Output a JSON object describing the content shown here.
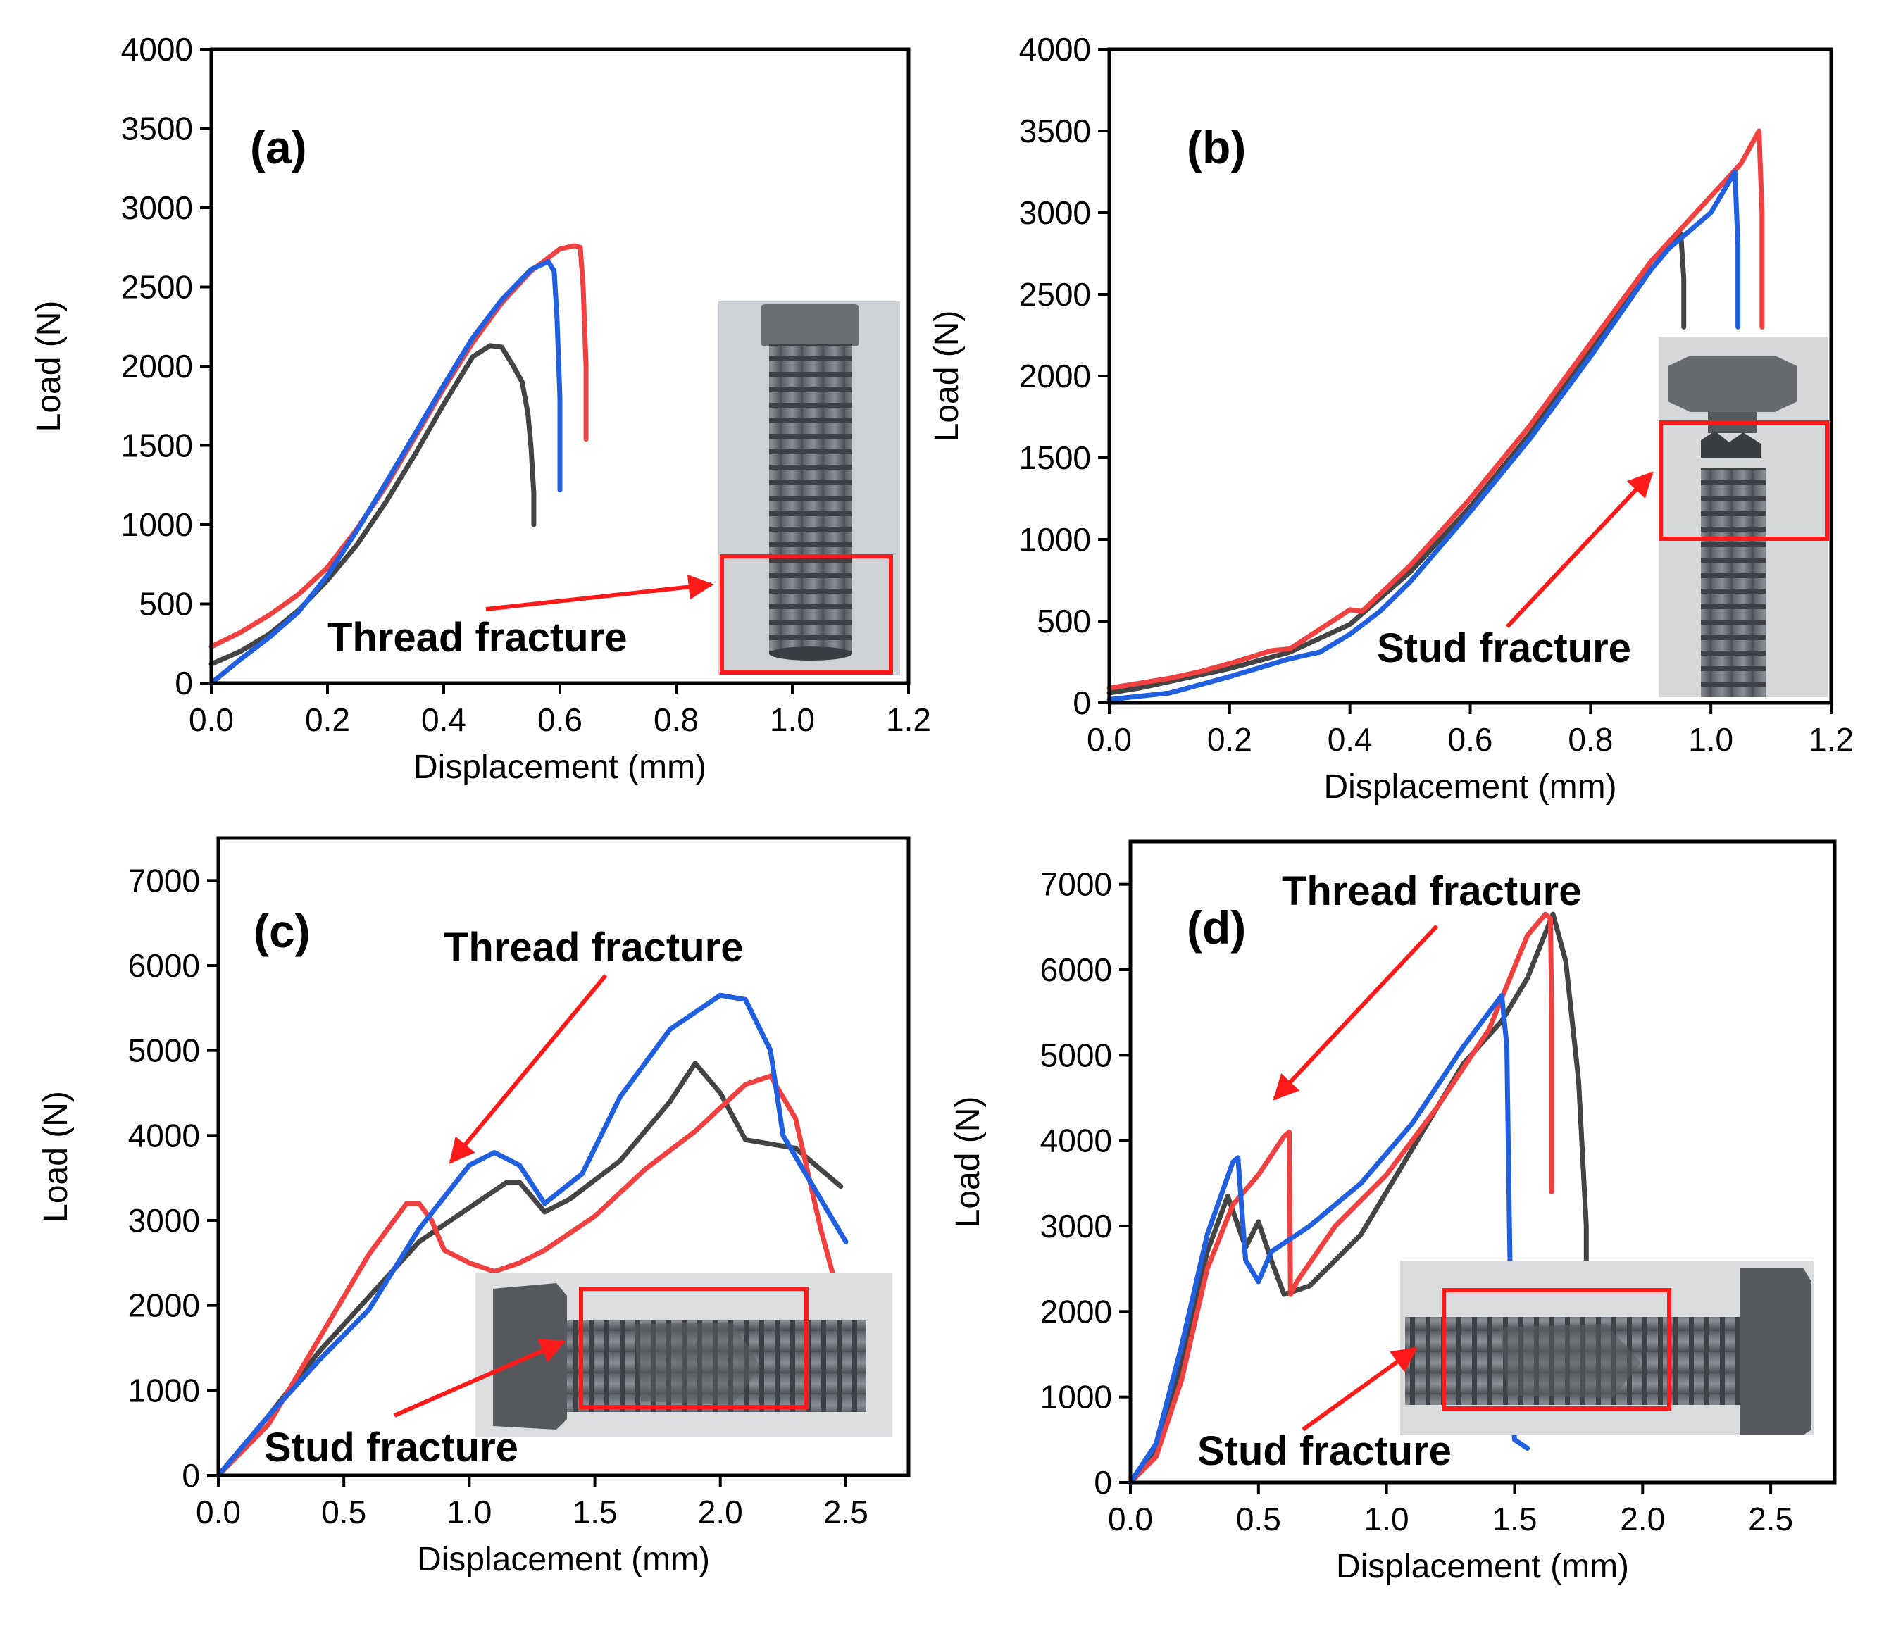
{
  "chart_data": [
    {
      "type": "line",
      "panel": "(a)",
      "xlabel": "Displacement (mm)",
      "ylabel": "Load (N)",
      "xlim": [
        0,
        1.2
      ],
      "ylim": [
        0,
        4000
      ],
      "xticks": [
        "0.0",
        "0.2",
        "0.4",
        "0.6",
        "0.8",
        "1.0",
        "1.2"
      ],
      "yticks": [
        "0",
        "500",
        "1000",
        "1500",
        "2000",
        "2500",
        "3000",
        "3500",
        "4000"
      ],
      "annotations": [
        "Thread fracture"
      ],
      "inset_photo": "bolt-thread-fracture",
      "series": [
        {
          "color": "#444444",
          "x": [
            0,
            0.05,
            0.1,
            0.15,
            0.2,
            0.25,
            0.3,
            0.35,
            0.4,
            0.45,
            0.48,
            0.5,
            0.52,
            0.535,
            0.545,
            0.55,
            0.555,
            0.555
          ],
          "y": [
            120,
            200,
            310,
            460,
            650,
            870,
            1140,
            1440,
            1760,
            2060,
            2130,
            2120,
            2000,
            1900,
            1700,
            1500,
            1200,
            1000
          ]
        },
        {
          "color": "#f04040",
          "x": [
            0,
            0.05,
            0.1,
            0.15,
            0.2,
            0.25,
            0.3,
            0.35,
            0.4,
            0.45,
            0.5,
            0.55,
            0.6,
            0.625,
            0.635,
            0.64,
            0.645,
            0.645
          ],
          "y": [
            230,
            320,
            430,
            560,
            730,
            970,
            1240,
            1550,
            1860,
            2150,
            2400,
            2600,
            2740,
            2760,
            2750,
            2500,
            2000,
            1540
          ]
        },
        {
          "color": "#2060e0",
          "x": [
            0,
            0.05,
            0.1,
            0.15,
            0.2,
            0.25,
            0.3,
            0.35,
            0.4,
            0.45,
            0.5,
            0.55,
            0.58,
            0.59,
            0.595,
            0.6,
            0.6
          ],
          "y": [
            0,
            150,
            290,
            450,
            680,
            960,
            1260,
            1570,
            1880,
            2180,
            2420,
            2610,
            2660,
            2600,
            2300,
            1800,
            1220
          ]
        }
      ]
    },
    {
      "type": "line",
      "panel": "(b)",
      "xlabel": "Displacement (mm)",
      "ylabel": "Load (N)",
      "xlim": [
        0,
        1.2
      ],
      "ylim": [
        0,
        4000
      ],
      "xticks": [
        "0.0",
        "0.2",
        "0.4",
        "0.6",
        "0.8",
        "1.0",
        "1.2"
      ],
      "yticks": [
        "0",
        "500",
        "1000",
        "1500",
        "2000",
        "2500",
        "3000",
        "3500",
        "4000"
      ],
      "annotations": [
        "Stud fracture"
      ],
      "inset_photo": "bolt-stud-fracture",
      "series": [
        {
          "color": "#444444",
          "x": [
            0,
            0.05,
            0.1,
            0.15,
            0.2,
            0.3,
            0.4,
            0.5,
            0.6,
            0.7,
            0.8,
            0.9,
            0.95,
            0.955,
            0.955
          ],
          "y": [
            60,
            90,
            130,
            170,
            210,
            310,
            480,
            800,
            1200,
            1650,
            2150,
            2650,
            2870,
            2600,
            2300
          ]
        },
        {
          "color": "#f04040",
          "x": [
            0,
            0.05,
            0.1,
            0.15,
            0.2,
            0.27,
            0.3,
            0.35,
            0.4,
            0.42,
            0.5,
            0.6,
            0.7,
            0.8,
            0.9,
            1.0,
            1.05,
            1.08,
            1.085,
            1.085
          ],
          "y": [
            90,
            120,
            150,
            190,
            240,
            320,
            330,
            450,
            570,
            560,
            840,
            1250,
            1700,
            2200,
            2700,
            3100,
            3300,
            3500,
            3000,
            2300
          ]
        },
        {
          "color": "#2060e0",
          "x": [
            0,
            0.05,
            0.1,
            0.15,
            0.2,
            0.3,
            0.35,
            0.4,
            0.45,
            0.5,
            0.6,
            0.7,
            0.8,
            0.9,
            0.93,
            1.0,
            1.04,
            1.045,
            1.045
          ],
          "y": [
            20,
            40,
            60,
            110,
            160,
            270,
            310,
            420,
            560,
            740,
            1170,
            1620,
            2120,
            2650,
            2780,
            3000,
            3250,
            2800,
            2300
          ]
        }
      ]
    },
    {
      "type": "line",
      "panel": "(c)",
      "xlabel": "Displacement (mm)",
      "ylabel": "Load (N)",
      "xlim": [
        0,
        2.75
      ],
      "ylim": [
        0,
        7500
      ],
      "xticks": [
        "0.0",
        "0.5",
        "1.0",
        "1.5",
        "2.0",
        "2.5"
      ],
      "yticks": [
        "0",
        "1000",
        "2000",
        "3000",
        "4000",
        "5000",
        "6000",
        "7000"
      ],
      "annotations": [
        "Thread fracture",
        "Stud fracture"
      ],
      "inset_photo": "bolt-side-view",
      "series": [
        {
          "color": "#444444",
          "x": [
            0,
            0.2,
            0.4,
            0.6,
            0.8,
            1.0,
            1.15,
            1.2,
            1.3,
            1.4,
            1.6,
            1.8,
            1.9,
            2.0,
            2.1,
            2.3,
            2.48
          ],
          "y": [
            0,
            700,
            1450,
            2100,
            2750,
            3150,
            3450,
            3450,
            3100,
            3250,
            3700,
            4400,
            4850,
            4500,
            3950,
            3850,
            3400
          ]
        },
        {
          "color": "#f04040",
          "x": [
            0,
            0.2,
            0.4,
            0.6,
            0.75,
            0.8,
            0.85,
            0.9,
            1.0,
            1.1,
            1.2,
            1.3,
            1.5,
            1.7,
            1.9,
            2.1,
            2.2,
            2.3,
            2.4,
            2.45
          ],
          "y": [
            0,
            600,
            1600,
            2600,
            3200,
            3200,
            3000,
            2650,
            2500,
            2400,
            2500,
            2650,
            3050,
            3600,
            4050,
            4600,
            4700,
            4200,
            2900,
            2350
          ]
        },
        {
          "color": "#2060e0",
          "x": [
            0,
            0.2,
            0.4,
            0.6,
            0.8,
            1.0,
            1.1,
            1.2,
            1.3,
            1.45,
            1.6,
            1.8,
            2.0,
            2.1,
            2.2,
            2.25,
            2.35,
            2.5
          ],
          "y": [
            0,
            700,
            1350,
            1950,
            2900,
            3650,
            3800,
            3650,
            3200,
            3550,
            4450,
            5250,
            5650,
            5600,
            5000,
            4000,
            3500,
            2750
          ]
        }
      ]
    },
    {
      "type": "line",
      "panel": "(d)",
      "xlabel": "Displacement (mm)",
      "ylabel": "Load (N)",
      "xlim": [
        0,
        2.75
      ],
      "ylim": [
        0,
        7500
      ],
      "xticks": [
        "0.0",
        "0.5",
        "1.0",
        "1.5",
        "2.0",
        "2.5"
      ],
      "yticks": [
        "0",
        "1000",
        "2000",
        "3000",
        "4000",
        "5000",
        "6000",
        "7000"
      ],
      "annotations": [
        "Thread fracture",
        "Stud fracture"
      ],
      "inset_photo": "bolt-side-view",
      "series": [
        {
          "color": "#444444",
          "x": [
            0,
            0.1,
            0.2,
            0.3,
            0.38,
            0.45,
            0.5,
            0.55,
            0.6,
            0.7,
            0.9,
            1.1,
            1.3,
            1.45,
            1.55,
            1.65,
            1.7,
            1.75,
            1.78,
            1.78
          ],
          "y": [
            0,
            400,
            1400,
            2700,
            3350,
            2750,
            3050,
            2600,
            2200,
            2300,
            2900,
            3900,
            4900,
            5400,
            5900,
            6650,
            6100,
            4700,
            3000,
            2600
          ]
        },
        {
          "color": "#f04040",
          "x": [
            0,
            0.1,
            0.2,
            0.3,
            0.4,
            0.5,
            0.6,
            0.62,
            0.625,
            0.65,
            0.8,
            1.0,
            1.2,
            1.4,
            1.55,
            1.62,
            1.64,
            1.645,
            1.645
          ],
          "y": [
            0,
            300,
            1200,
            2500,
            3250,
            3600,
            4050,
            4100,
            2200,
            2350,
            3000,
            3600,
            4400,
            5300,
            6400,
            6650,
            6600,
            5500,
            3400
          ]
        },
        {
          "color": "#2060e0",
          "x": [
            0,
            0.1,
            0.2,
            0.3,
            0.4,
            0.42,
            0.45,
            0.5,
            0.55,
            0.7,
            0.9,
            1.1,
            1.3,
            1.45,
            1.47,
            1.48,
            1.49,
            1.5,
            1.55
          ],
          "y": [
            0,
            450,
            1600,
            2900,
            3750,
            3800,
            2600,
            2350,
            2700,
            3000,
            3500,
            4200,
            5100,
            5700,
            5100,
            3000,
            1000,
            500,
            400
          ]
        }
      ]
    }
  ]
}
